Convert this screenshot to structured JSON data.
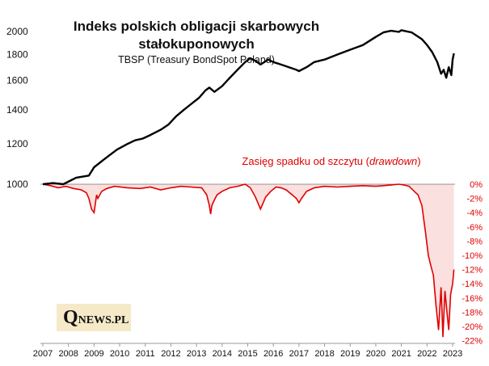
{
  "chart_data": [
    {
      "type": "line",
      "title_line1": "Indeks polskich obligacji skarbowych",
      "title_line2": "stałokuponowych",
      "subtitle": "TBSP (Treasury BondSpot Poland)",
      "scale": "log",
      "ylim": [
        1000,
        2050
      ],
      "yticks": [
        "1000",
        "1200",
        "1400",
        "1600",
        "1800",
        "2000"
      ],
      "xticks": [
        "2007",
        "2008",
        "2009",
        "2010",
        "2011",
        "2012",
        "2013",
        "2014",
        "2015",
        "2016",
        "2017",
        "2018",
        "2019",
        "2020",
        "2021",
        "2022",
        "2023"
      ],
      "color": "#000000",
      "series": [
        {
          "x": [
            2007.0,
            2007.4,
            2007.8,
            2008.3,
            2008.8,
            2009.0,
            2009.3,
            2009.6,
            2009.9,
            2010.3,
            2010.6,
            2010.9,
            2011.2,
            2011.6,
            2011.9,
            2012.2,
            2012.5,
            2012.8,
            2013.1,
            2013.35,
            2013.5,
            2013.7,
            2014.0,
            2014.3,
            2014.6,
            2014.9,
            2015.1,
            2015.3,
            2015.5,
            2015.8,
            2016.0,
            2016.3,
            2016.6,
            2016.9,
            2017.0,
            2017.3,
            2017.6,
            2018.0,
            2018.5,
            2019.0,
            2019.5,
            2020.0,
            2020.3,
            2020.6,
            2020.9,
            2021.0,
            2021.2,
            2021.4,
            2021.6,
            2021.8,
            2022.0,
            2022.2,
            2022.4,
            2022.55,
            2022.65,
            2022.75,
            2022.85,
            2022.95,
            2023.0,
            2023.05
          ],
          "values": [
            1000,
            1005,
            1000,
            1030,
            1040,
            1080,
            1110,
            1140,
            1170,
            1200,
            1220,
            1230,
            1250,
            1280,
            1310,
            1360,
            1400,
            1440,
            1480,
            1530,
            1550,
            1520,
            1560,
            1620,
            1680,
            1740,
            1770,
            1750,
            1720,
            1760,
            1740,
            1720,
            1700,
            1680,
            1670,
            1700,
            1740,
            1760,
            1800,
            1840,
            1880,
            1950,
            1990,
            2005,
            1995,
            2010,
            2000,
            1990,
            1960,
            1930,
            1880,
            1820,
            1740,
            1650,
            1680,
            1620,
            1700,
            1640,
            1760,
            1810
          ]
        }
      ]
    },
    {
      "type": "area",
      "label_prefix": "Zasięg spadku od szczytu (",
      "label_italic": "drawdown",
      "label_suffix": ")",
      "ylim": [
        -22,
        0
      ],
      "yticks": [
        "0%",
        "-2%",
        "-4%",
        "-6%",
        "-8%",
        "-10%",
        "-12%",
        "-14%",
        "-16%",
        "-18%",
        "-20%",
        "-22%"
      ],
      "color": "#e00000",
      "series": [
        {
          "x": [
            2007.0,
            2007.3,
            2007.6,
            2007.9,
            2008.2,
            2008.5,
            2008.7,
            2008.8,
            2008.9,
            2009.0,
            2009.1,
            2009.15,
            2009.3,
            2009.5,
            2009.8,
            2010.3,
            2010.8,
            2011.2,
            2011.6,
            2012.0,
            2012.4,
            2012.8,
            2013.2,
            2013.4,
            2013.5,
            2013.55,
            2013.6,
            2013.7,
            2013.8,
            2014.0,
            2014.3,
            2014.6,
            2014.9,
            2015.1,
            2015.3,
            2015.5,
            2015.7,
            2015.9,
            2016.1,
            2016.3,
            2016.5,
            2016.7,
            2016.9,
            2017.0,
            2017.1,
            2017.3,
            2017.6,
            2018.0,
            2018.5,
            2019.0,
            2019.5,
            2020.0,
            2020.3,
            2020.6,
            2020.9,
            2021.1,
            2021.3,
            2021.5,
            2021.65,
            2021.8,
            2021.95,
            2022.05,
            2022.15,
            2022.25,
            2022.35,
            2022.45,
            2022.55,
            2022.62,
            2022.7,
            2022.78,
            2022.85,
            2022.92,
            2023.0,
            2023.05
          ],
          "values": [
            0,
            -0.2,
            -0.5,
            -0.3,
            -0.6,
            -0.8,
            -1.2,
            -2.0,
            -3.5,
            -4.0,
            -1.5,
            -2.0,
            -1.0,
            -0.6,
            -0.3,
            -0.5,
            -0.6,
            -0.4,
            -0.8,
            -0.5,
            -0.3,
            -0.4,
            -0.5,
            -1.5,
            -3.0,
            -4.2,
            -3.0,
            -2.2,
            -1.5,
            -1.0,
            -0.5,
            -0.3,
            0,
            -0.5,
            -1.8,
            -3.5,
            -1.8,
            -1.0,
            -0.4,
            -0.5,
            -0.8,
            -1.4,
            -2.0,
            -2.6,
            -2.0,
            -1.0,
            -0.5,
            -0.3,
            -0.4,
            -0.3,
            -0.2,
            -0.3,
            -0.2,
            -0.1,
            0,
            -0.1,
            -0.3,
            -1.0,
            -1.5,
            -3.0,
            -7.0,
            -10.0,
            -11.5,
            -12.8,
            -17.0,
            -20.5,
            -14.5,
            -21.5,
            -15.0,
            -18.0,
            -20.5,
            -15.5,
            -14.0,
            -12.0
          ]
        }
      ]
    }
  ],
  "logo": {
    "q": "Q",
    "rest": "NEWS.PL"
  }
}
